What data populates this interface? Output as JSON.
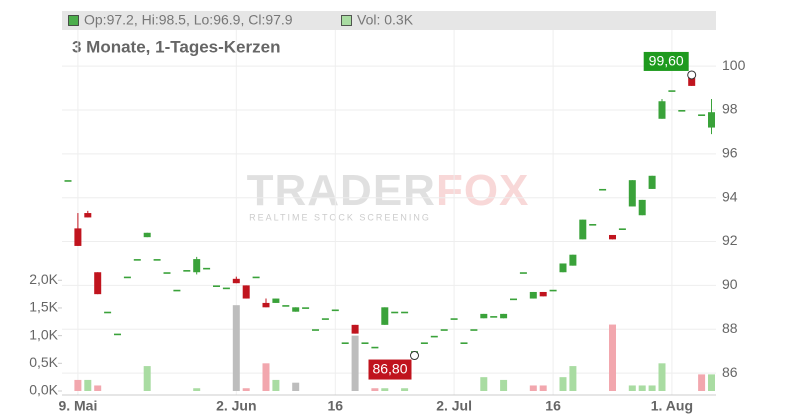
{
  "chart_data": {
    "type": "candlestick",
    "subtitle": "3 Monate, 1-Tages-Kerzen",
    "legend": {
      "ohlc": "Op:97.2, Hi:98.5, Lo:96.9, Cl:97.9",
      "volume": "Vol: 0.3K"
    },
    "watermark": {
      "left": "TRADER",
      "right": "FOX",
      "sub": "REALTIME STOCK SCREENING"
    },
    "categories": [
      null,
      "9. Mai",
      null,
      null,
      null,
      null,
      null,
      null,
      null,
      null,
      null,
      null,
      null,
      null,
      null,
      null,
      null,
      "2. Jun",
      null,
      null,
      null,
      null,
      null,
      null,
      null,
      null,
      null,
      "16",
      null,
      null,
      null,
      null,
      null,
      null,
      null,
      null,
      null,
      null,
      null,
      "2. Jul",
      null,
      null,
      null,
      null,
      null,
      null,
      null,
      null,
      null,
      "16",
      null,
      null,
      null,
      null,
      null,
      null,
      null,
      null,
      null,
      null,
      null,
      "1. Aug",
      null,
      null,
      null,
      null
    ],
    "open": [
      94.8,
      92.6,
      93.3,
      90.6,
      88.8,
      87.8,
      90.4,
      91.2,
      92.2,
      91.2,
      90.6,
      89.8,
      90.7,
      90.6,
      90.8,
      90.0,
      89.9,
      90.3,
      90.0,
      90.4,
      89.2,
      89.2,
      89.1,
      88.8,
      89.0,
      88.0,
      88.5,
      88.9,
      87.4,
      88.2,
      87.4,
      87.2,
      88.2,
      88.8,
      88.8,
      87.0,
      87.4,
      87.7,
      88.0,
      88.5,
      87.4,
      88.0,
      88.5,
      88.6,
      88.5,
      89.4,
      90.6,
      89.4,
      89.7,
      89.8,
      90.6,
      90.9,
      92.1,
      92.8,
      94.4,
      92.3,
      92.6,
      93.6,
      93.2,
      94.4,
      97.6,
      98.9,
      98.0,
      99.6,
      97.8,
      97.2
    ],
    "high": [
      94.8,
      93.3,
      93.4,
      90.6,
      88.8,
      87.8,
      90.4,
      91.2,
      92.4,
      91.2,
      90.6,
      89.8,
      90.7,
      91.3,
      90.8,
      90.0,
      89.9,
      90.4,
      90.0,
      90.4,
      89.4,
      89.4,
      89.1,
      89.0,
      89.0,
      88.0,
      88.5,
      88.9,
      87.4,
      88.2,
      87.4,
      87.2,
      89.0,
      88.8,
      88.8,
      87.0,
      87.4,
      87.7,
      88.0,
      88.5,
      87.4,
      88.0,
      88.7,
      88.6,
      88.7,
      89.4,
      90.6,
      89.7,
      89.7,
      89.8,
      91.0,
      91.4,
      93.0,
      92.8,
      94.4,
      92.3,
      92.6,
      94.8,
      93.9,
      95.0,
      98.5,
      98.9,
      98.0,
      99.6,
      97.8,
      98.5
    ],
    "low": [
      94.8,
      91.8,
      93.1,
      89.6,
      88.8,
      87.8,
      90.4,
      91.2,
      92.2,
      91.2,
      90.6,
      89.8,
      90.7,
      90.5,
      90.8,
      90.0,
      89.9,
      90.1,
      89.4,
      90.4,
      89.0,
      89.2,
      89.1,
      88.8,
      89.0,
      88.0,
      88.5,
      88.9,
      87.4,
      87.8,
      87.4,
      87.2,
      88.2,
      88.8,
      88.8,
      86.8,
      87.4,
      87.7,
      88.0,
      88.5,
      87.4,
      88.0,
      88.5,
      88.6,
      88.5,
      89.4,
      90.6,
      89.4,
      89.5,
      89.8,
      90.6,
      90.9,
      92.1,
      92.8,
      94.4,
      92.1,
      92.6,
      93.6,
      93.2,
      94.4,
      97.6,
      98.9,
      98.0,
      99.1,
      97.8,
      96.9
    ],
    "close": [
      94.8,
      91.8,
      93.1,
      89.6,
      88.8,
      87.8,
      90.4,
      91.2,
      92.4,
      91.2,
      90.6,
      89.8,
      90.7,
      91.2,
      90.8,
      90.0,
      89.9,
      90.1,
      89.4,
      90.4,
      89.0,
      89.4,
      89.1,
      89.0,
      89.0,
      88.0,
      88.5,
      88.9,
      87.4,
      87.8,
      87.4,
      87.2,
      89.0,
      88.8,
      88.8,
      87.0,
      87.4,
      87.7,
      88.0,
      88.5,
      87.4,
      88.0,
      88.7,
      88.6,
      88.7,
      89.4,
      90.6,
      89.7,
      89.5,
      89.8,
      91.0,
      91.4,
      93.0,
      92.8,
      94.4,
      92.1,
      92.6,
      94.8,
      93.9,
      95.0,
      98.4,
      98.9,
      98.0,
      99.1,
      97.8,
      97.9
    ],
    "volume": [
      null,
      0.2,
      0.2,
      0.1,
      null,
      null,
      null,
      null,
      0.45,
      null,
      null,
      null,
      null,
      0.05,
      null,
      null,
      null,
      1.55,
      0.05,
      null,
      0.5,
      0.2,
      null,
      0.15,
      null,
      null,
      null,
      null,
      null,
      1.0,
      null,
      0.05,
      0.05,
      null,
      0.05,
      null,
      null,
      null,
      null,
      null,
      null,
      null,
      0.25,
      null,
      0.2,
      null,
      null,
      0.1,
      0.1,
      null,
      0.25,
      0.45,
      null,
      null,
      null,
      1.2,
      null,
      0.1,
      0.1,
      0.1,
      0.5,
      null,
      null,
      null,
      0.3,
      0.3
    ],
    "volume_colors": [
      null,
      "#f2a7ae",
      "#a9dca2",
      "#f2a7ae",
      null,
      null,
      null,
      null,
      "#a9dca2",
      null,
      null,
      null,
      null,
      "#a9dca2",
      null,
      null,
      null,
      "#bdbdbd",
      "#f2a7ae",
      null,
      "#f2a7ae",
      "#a9dca2",
      null,
      "#bdbdbd",
      null,
      null,
      null,
      null,
      null,
      "#bdbdbd",
      null,
      "#f2a7ae",
      "#a9dca2",
      null,
      "#a9dca2",
      null,
      null,
      null,
      null,
      null,
      null,
      null,
      "#a9dca2",
      null,
      "#a9dca2",
      null,
      null,
      "#f2a7ae",
      "#f2a7ae",
      null,
      "#a9dca2",
      "#a9dca2",
      null,
      null,
      null,
      "#f2a7ae",
      null,
      "#a9dca2",
      "#a9dca2",
      "#a9dca2",
      "#a9dca2",
      null,
      null,
      null,
      "#f2a7ae",
      "#a9dca2"
    ],
    "up_color": "#3aa23a",
    "down_color": "#c0141e",
    "ylim": [
      85,
      101.65
    ],
    "yticks": [
      86,
      88,
      90,
      92,
      94,
      96,
      98,
      100
    ],
    "y2lim": [
      0,
      6.52
    ],
    "y2ticks": [
      {
        "value": 0,
        "label": "0,0K"
      },
      {
        "value": 0.5,
        "label": "0,5K"
      },
      {
        "value": 1,
        "label": "1,0K"
      },
      {
        "value": 1.5,
        "label": "1,5K"
      },
      {
        "value": 2,
        "label": "2,0K"
      }
    ],
    "high_label": {
      "value": 99.6,
      "label": "99,60"
    },
    "low_label": {
      "value": 86.8,
      "label": "86,80"
    },
    "grid": true
  }
}
